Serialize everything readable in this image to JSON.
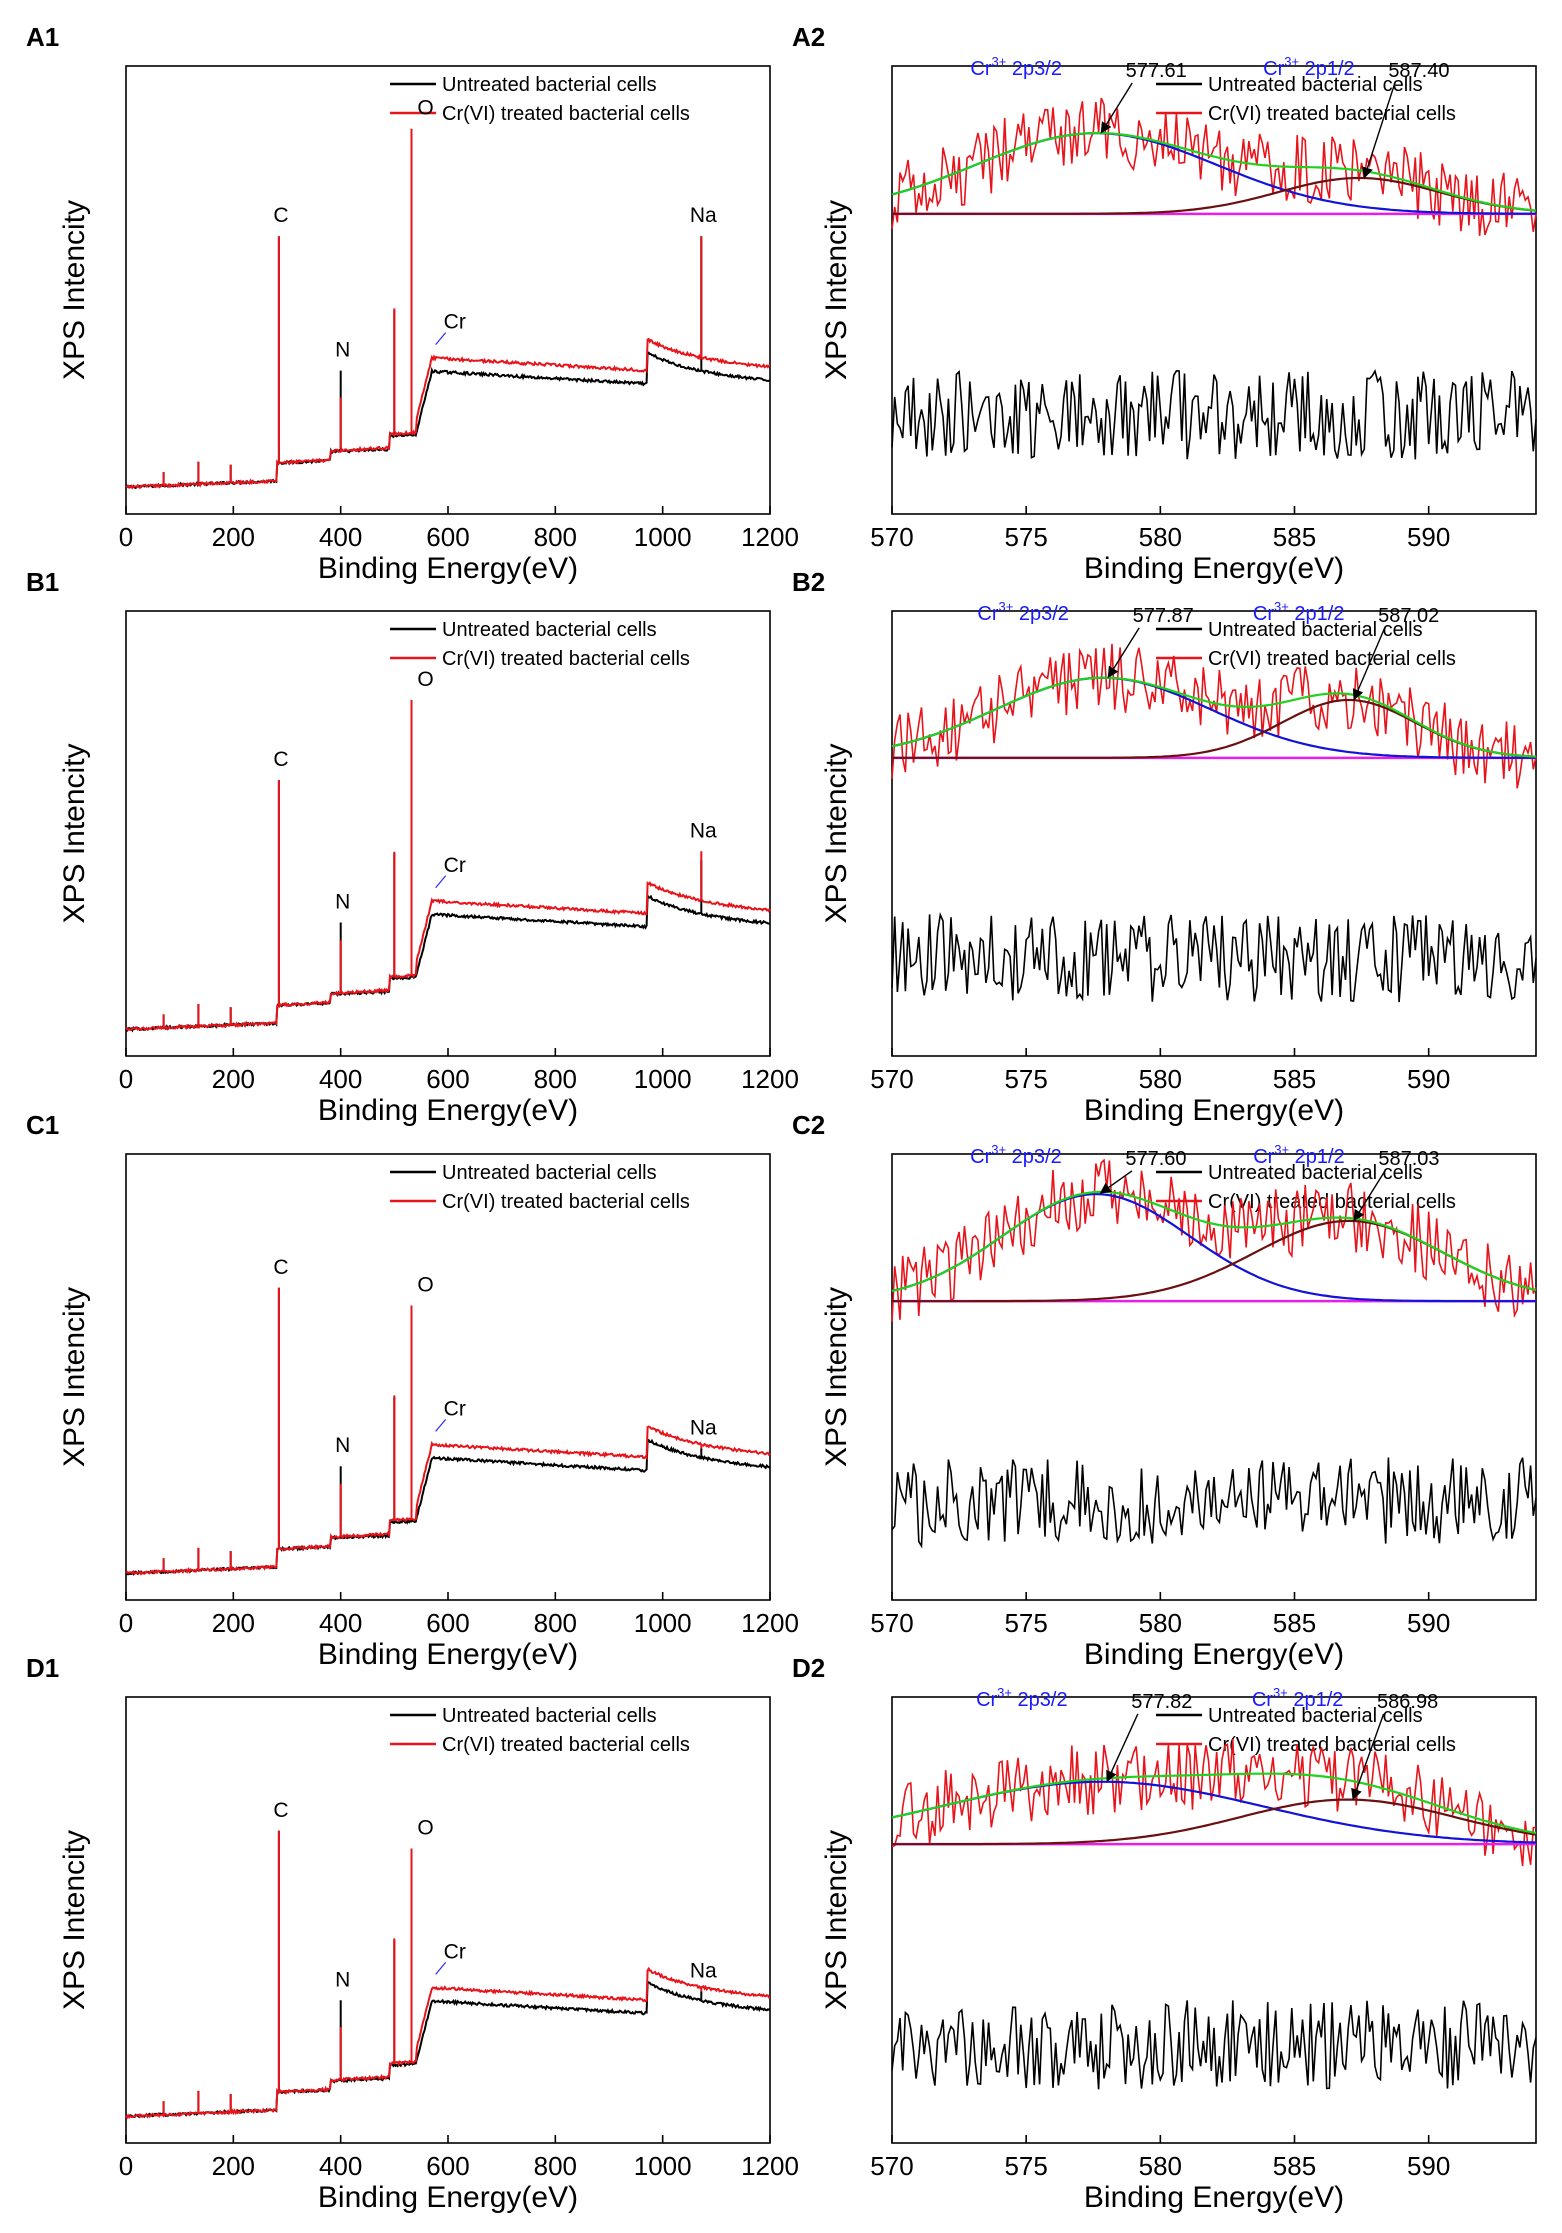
{
  "figure": {
    "y_axis_title": "XPS Intencity",
    "x_axis_title": "Binding Energy(eV)",
    "legend": [
      "Untreated bacterial cells",
      "Cr(VI) treated bacterial cells"
    ],
    "colors": {
      "untreated": "#000000",
      "treated": "#e8141b",
      "fit_green": "#1ed21e",
      "fit_blue": "#1212d8",
      "fit_brown": "#6b1010",
      "baseline": "#e81ee8",
      "annotation_blue": "#1a1aff"
    }
  },
  "chart_data": [
    {
      "id": "A1",
      "type": "line",
      "xlim": [
        0,
        1200
      ],
      "xticks": [
        0,
        200,
        400,
        600,
        800,
        1000,
        1200
      ],
      "series": [
        {
          "name": "Untreated bacterial cells"
        },
        {
          "name": "Cr(VI) treated bacterial cells"
        }
      ],
      "peaks": [
        {
          "label": "C",
          "x": 285,
          "untreated": 0.62,
          "treated": 0.62
        },
        {
          "label": "N",
          "x": 400,
          "untreated": 0.32,
          "treated": 0.26
        },
        {
          "label": "O",
          "x": 532,
          "untreated": 0.85,
          "treated": 0.86
        },
        {
          "label": "Cr",
          "x": 577,
          "marker": true
        },
        {
          "label": "Na",
          "x": 1072,
          "untreated": 0.62,
          "treated": 0.62
        }
      ]
    },
    {
      "id": "A2",
      "type": "line",
      "xlim": [
        570,
        594
      ],
      "xticks": [
        570,
        575,
        580,
        585,
        590
      ],
      "series": [
        {
          "name": "Untreated bacterial cells"
        },
        {
          "name": "Cr(VI) treated bacterial cells"
        }
      ],
      "components": [
        {
          "name": "Cr 2p3/2",
          "center": 577.61,
          "amplitude": 0.18,
          "width": 4.5
        },
        {
          "name": "Cr 2p1/2",
          "center": 587.4,
          "amplitude": 0.08,
          "width": 3.0
        }
      ],
      "annotations": [
        {
          "name": "Cr3+ 2p3/2",
          "sup": "3+",
          "base": "Cr",
          "suffix": " 2p3/2",
          "value": "577.61"
        },
        {
          "name": "Cr3+ 2p1/2",
          "sup": "3+",
          "base": "Cr",
          "suffix": " 2p1/2",
          "value": "587.40"
        }
      ]
    },
    {
      "id": "B1",
      "type": "line",
      "xlim": [
        0,
        1200
      ],
      "xticks": [
        0,
        200,
        400,
        600,
        800,
        1000,
        1200
      ],
      "series": [
        {
          "name": "Untreated bacterial cells"
        },
        {
          "name": "Cr(VI) treated bacterial cells"
        }
      ],
      "peaks": [
        {
          "label": "C",
          "x": 285,
          "untreated": 0.62,
          "treated": 0.62
        },
        {
          "label": "N",
          "x": 400,
          "untreated": 0.3,
          "treated": 0.26
        },
        {
          "label": "O",
          "x": 532,
          "untreated": 0.78,
          "treated": 0.8
        },
        {
          "label": "Cr",
          "x": 577,
          "marker": true
        },
        {
          "label": "Na",
          "x": 1072,
          "untreated": 0.44,
          "treated": 0.46
        }
      ]
    },
    {
      "id": "B2",
      "type": "line",
      "xlim": [
        570,
        594
      ],
      "xticks": [
        570,
        575,
        580,
        585,
        590
      ],
      "series": [
        {
          "name": "Untreated bacterial cells"
        },
        {
          "name": "Cr(VI) treated bacterial cells"
        }
      ],
      "components": [
        {
          "name": "Cr 2p3/2",
          "center": 577.87,
          "amplitude": 0.18,
          "width": 4.0
        },
        {
          "name": "Cr 2p1/2",
          "center": 587.02,
          "amplitude": 0.13,
          "width": 2.5
        }
      ],
      "annotations": [
        {
          "name": "Cr3+ 2p3/2",
          "sup": "3+",
          "base": "Cr",
          "suffix": " 2p3/2",
          "value": "577.87"
        },
        {
          "name": "Cr3+ 2p1/2",
          "sup": "3+",
          "base": "Cr",
          "suffix": " 2p1/2",
          "value": "587.02"
        }
      ]
    },
    {
      "id": "C1",
      "type": "line",
      "xlim": [
        0,
        1200
      ],
      "xticks": [
        0,
        200,
        400,
        600,
        800,
        1000,
        1200
      ],
      "series": [
        {
          "name": "Untreated bacterial cells"
        },
        {
          "name": "Cr(VI) treated bacterial cells"
        }
      ],
      "peaks": [
        {
          "label": "C",
          "x": 285,
          "untreated": 0.7,
          "treated": 0.7
        },
        {
          "label": "N",
          "x": 400,
          "untreated": 0.3,
          "treated": 0.26
        },
        {
          "label": "O",
          "x": 532,
          "untreated": 0.66,
          "treated": 0.66
        },
        {
          "label": "Cr",
          "x": 577,
          "marker": true
        },
        {
          "label": "Na",
          "x": 1072,
          "untreated": 0.34,
          "treated": 0.34
        }
      ]
    },
    {
      "id": "C2",
      "type": "line",
      "xlim": [
        570,
        594
      ],
      "xticks": [
        570,
        575,
        580,
        585,
        590
      ],
      "series": [
        {
          "name": "Untreated bacterial cells"
        },
        {
          "name": "Cr(VI) treated bacterial cells"
        }
      ],
      "components": [
        {
          "name": "Cr 2p3/2",
          "center": 577.6,
          "amplitude": 0.24,
          "width": 3.5
        },
        {
          "name": "Cr 2p1/2",
          "center": 587.03,
          "amplitude": 0.18,
          "width": 3.5
        }
      ],
      "annotations": [
        {
          "name": "Cr3+ 2p3/2",
          "sup": "3+",
          "base": "Cr",
          "suffix": " 2p3/2",
          "value": "577.60"
        },
        {
          "name": "Cr3+ 2p1/2",
          "sup": "3+",
          "base": "Cr",
          "suffix": " 2p1/2",
          "value": "587.03"
        }
      ]
    },
    {
      "id": "D1",
      "type": "line",
      "xlim": [
        0,
        1200
      ],
      "xticks": [
        0,
        200,
        400,
        600,
        800,
        1000,
        1200
      ],
      "series": [
        {
          "name": "Untreated bacterial cells"
        },
        {
          "name": "Cr(VI) treated bacterial cells"
        }
      ],
      "peaks": [
        {
          "label": "C",
          "x": 285,
          "untreated": 0.7,
          "treated": 0.7
        },
        {
          "label": "N",
          "x": 400,
          "untreated": 0.32,
          "treated": 0.26
        },
        {
          "label": "O",
          "x": 532,
          "untreated": 0.66,
          "treated": 0.66
        },
        {
          "label": "Cr",
          "x": 577,
          "marker": true
        },
        {
          "label": "Na",
          "x": 1072,
          "untreated": 0.34,
          "treated": 0.34
        }
      ]
    },
    {
      "id": "D2",
      "type": "line",
      "xlim": [
        570,
        594
      ],
      "xticks": [
        570,
        575,
        580,
        585,
        590
      ],
      "series": [
        {
          "name": "Untreated bacterial cells"
        },
        {
          "name": "Cr(VI) treated bacterial cells"
        }
      ],
      "components": [
        {
          "name": "Cr 2p3/2",
          "center": 577.82,
          "amplitude": 0.14,
          "width": 6.0
        },
        {
          "name": "Cr 2p1/2",
          "center": 586.98,
          "amplitude": 0.1,
          "width": 4.0
        }
      ],
      "annotations": [
        {
          "name": "Cr3+ 2p3/2",
          "sup": "3+",
          "base": "Cr",
          "suffix": " 2p3/2",
          "value": "577.82"
        },
        {
          "name": "Cr3+ 2p1/2",
          "sup": "3+",
          "base": "Cr",
          "suffix": " 2p1/2",
          "value": "586.98"
        }
      ]
    }
  ]
}
